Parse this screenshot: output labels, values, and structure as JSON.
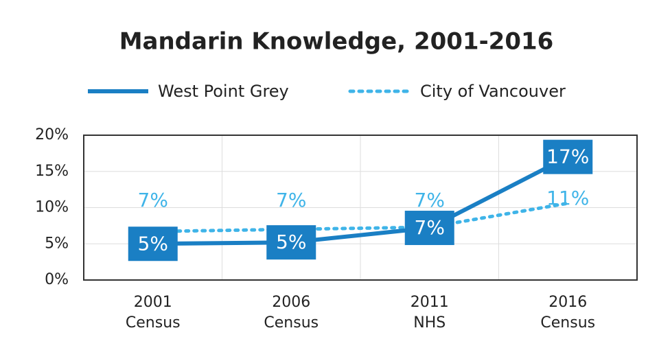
{
  "chart_data": {
    "type": "line",
    "title": "Mandarin Knowledge, 2001-2016",
    "categories": [
      [
        "2001",
        "Census"
      ],
      [
        "2006",
        "Census"
      ],
      [
        "2011",
        "NHS"
      ],
      [
        "2016",
        "Census"
      ]
    ],
    "series": [
      {
        "name": "West Point Grey",
        "color": "#1a7fc4",
        "style": "solid",
        "values": [
          5,
          5.2,
          7.2,
          17
        ],
        "value_labels": [
          "5%",
          "5%",
          "7%",
          "17%"
        ]
      },
      {
        "name": "City of Vancouver",
        "color": "#3fb4e8",
        "style": "dotted",
        "values": [
          6.7,
          7,
          7.3,
          10.6
        ],
        "value_labels": [
          "7%",
          "7%",
          "7%",
          "11%"
        ]
      }
    ],
    "ylim": [
      0,
      20
    ],
    "yticks": [
      {
        "value": 0,
        "label": "0%"
      },
      {
        "value": 5,
        "label": "5%"
      },
      {
        "value": 10,
        "label": "10%"
      },
      {
        "value": 15,
        "label": "15%"
      },
      {
        "value": 20,
        "label": "20%"
      }
    ],
    "grid": true
  }
}
